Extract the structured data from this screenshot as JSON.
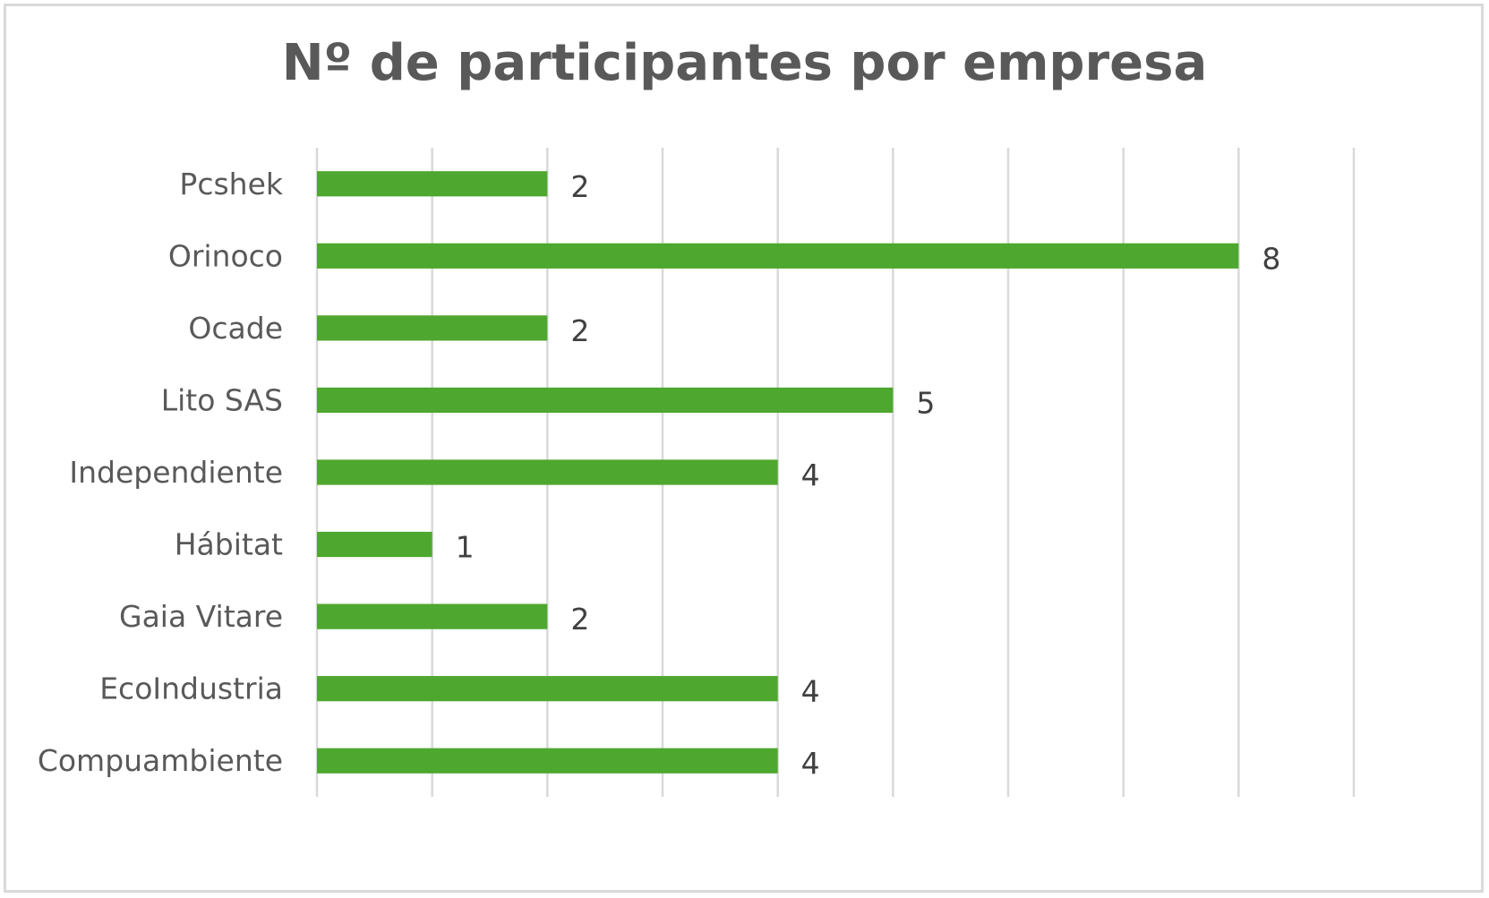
{
  "chart_data": {
    "type": "bar",
    "orientation": "horizontal",
    "title": "Nº de participantes por empresa",
    "xlabel": "",
    "ylabel": "",
    "categories": [
      "Pcshek",
      "Orinoco",
      "Ocade",
      "Lito SAS",
      "Independiente",
      "Hábitat",
      "Gaia Vitare",
      "EcoIndustria",
      "Compuambiente"
    ],
    "values": [
      2,
      8,
      2,
      5,
      4,
      1,
      2,
      4,
      4
    ],
    "xlim": [
      0,
      9
    ],
    "grid": true,
    "legend": "none",
    "bar_color": "#4ea72e",
    "grid_color": "#d9d9d9",
    "data_labels": true
  }
}
